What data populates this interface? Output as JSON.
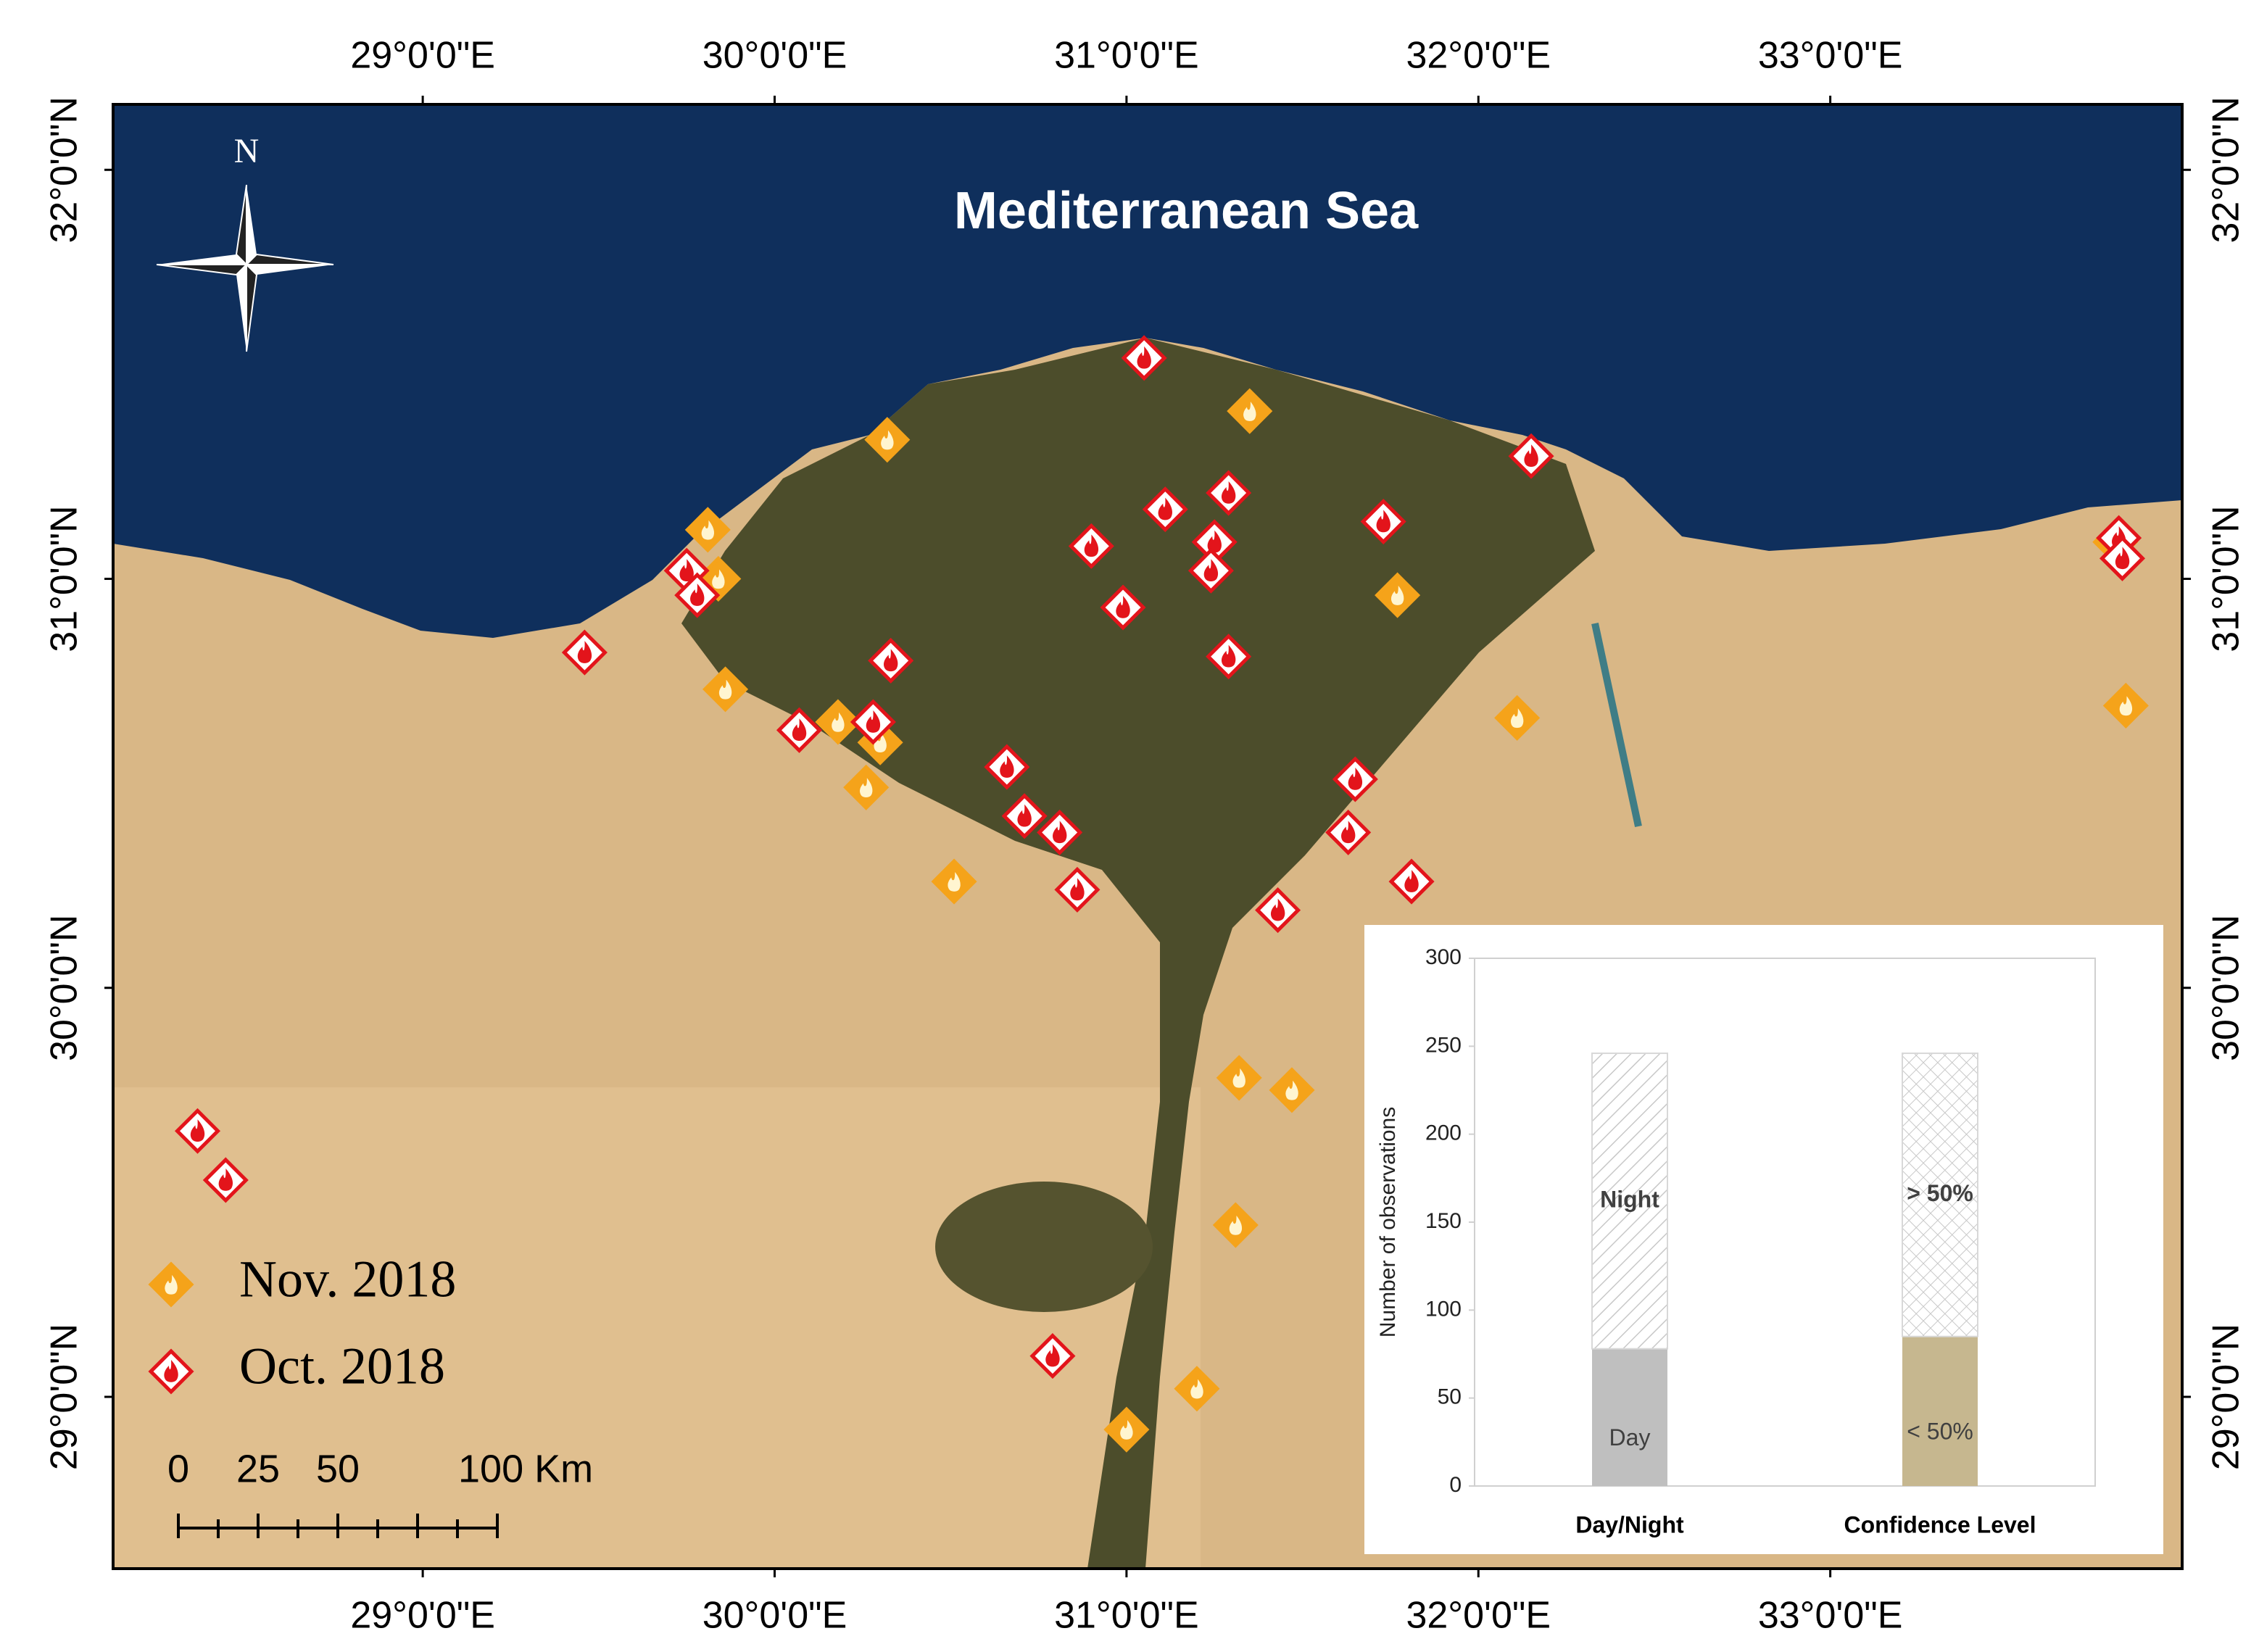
{
  "map": {
    "type": "scatter-map",
    "title": "Mediterranean Sea",
    "north_label": "N",
    "xlim": [
      28.12,
      34.0
    ],
    "ylim": [
      28.58,
      32.16
    ],
    "xticks": [
      {
        "value": 29,
        "label": "29°0'0\"E"
      },
      {
        "value": 30,
        "label": "30°0'0\"E"
      },
      {
        "value": 31,
        "label": "31°0'0\"E"
      },
      {
        "value": 32,
        "label": "32°0'0\"E"
      },
      {
        "value": 33,
        "label": "33°0'0\"E"
      }
    ],
    "yticks": [
      {
        "value": 29,
        "label": "29°0'0\"N"
      },
      {
        "value": 30,
        "label": "30°0'0\"N"
      },
      {
        "value": 31,
        "label": "31°0'0\"N"
      },
      {
        "value": 32,
        "label": "32°0'0\"N"
      }
    ],
    "series": [
      {
        "name": "Nov. 2018",
        "color": "#f5a31a",
        "lon": [
          30.32,
          31.35,
          29.81,
          29.84,
          31.77,
          29.86,
          30.18,
          30.3,
          30.26,
          32.11,
          33.84,
          30.51,
          31.32,
          31.47,
          31.31,
          31.2,
          31.0,
          33.81
        ],
        "lat": [
          31.34,
          31.41,
          31.12,
          31.0,
          30.96,
          30.73,
          30.65,
          30.6,
          30.49,
          30.66,
          30.69,
          30.26,
          29.78,
          29.75,
          29.42,
          29.02,
          28.92,
          31.09
        ]
      },
      {
        "name": "Oct. 2018",
        "color": "#e3141b",
        "lon": [
          31.05,
          32.15,
          31.29,
          31.11,
          31.73,
          30.9,
          31.25,
          31.24,
          29.75,
          29.78,
          30.99,
          29.46,
          30.33,
          31.29,
          30.07,
          30.28,
          30.66,
          31.65,
          30.71,
          30.81,
          31.63,
          30.86,
          31.81,
          31.43,
          28.36,
          28.44,
          30.79,
          33.82,
          33.83
        ],
        "lat": [
          31.54,
          31.3,
          31.21,
          31.17,
          31.14,
          31.08,
          31.09,
          31.02,
          31.02,
          30.96,
          30.93,
          30.82,
          30.8,
          30.81,
          30.63,
          30.65,
          30.54,
          30.51,
          30.42,
          30.38,
          30.38,
          30.24,
          30.26,
          30.19,
          29.65,
          29.53,
          29.1,
          31.1,
          31.05
        ]
      }
    ],
    "scale_bar": {
      "labels": [
        "0",
        "25",
        "50",
        "100 Km"
      ]
    }
  },
  "chart_data": {
    "type": "stacked-bar",
    "ylabel": "Number of observations",
    "categories": [
      "Day/Night",
      "Confidence Level"
    ],
    "ylim": [
      0,
      300
    ],
    "yticks": [
      0,
      50,
      100,
      150,
      200,
      250,
      300
    ],
    "series": [
      {
        "values": [
          78,
          85
        ],
        "segment_labels": [
          "Day",
          "< 50%"
        ],
        "colors": [
          "#bfbfbf",
          "#c6b78f"
        ]
      },
      {
        "values": [
          168,
          161
        ],
        "segment_labels": [
          "Night",
          "> 50%"
        ],
        "patterns": [
          "diagonal",
          "crosshatch"
        ]
      }
    ]
  }
}
